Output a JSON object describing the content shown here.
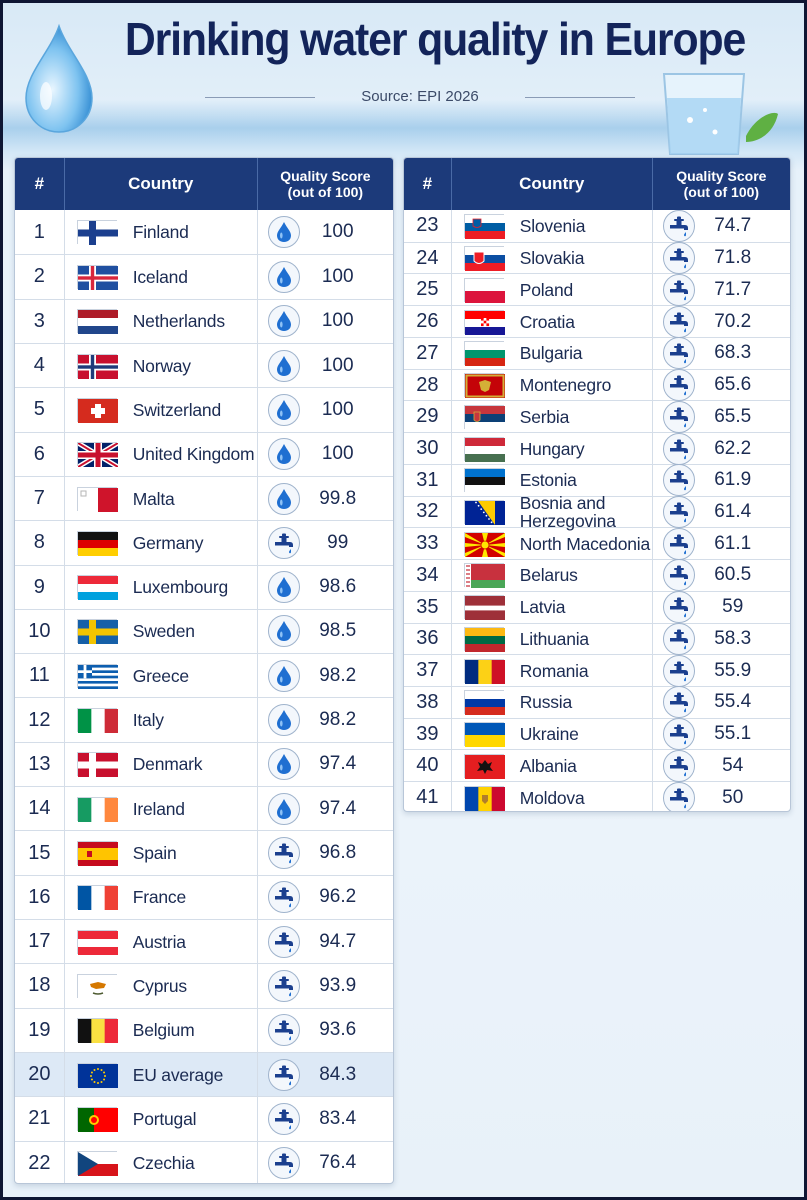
{
  "title": "Drinking water quality in Europe",
  "source": "Source: EPI 2026",
  "columns": {
    "rank": "#",
    "country": "Country",
    "score_line1": "Quality Score",
    "score_line2": "(out of 100)"
  },
  "colors": {
    "header": "#1c3a7a",
    "icon_blue": "#1f6fd1",
    "eu_highlight": "#dde9f6",
    "title": "#13245a"
  },
  "chart_data": {
    "type": "table",
    "title": "Drinking water quality in Europe",
    "columns": [
      "#",
      "Country",
      "Quality Score (out of 100)"
    ],
    "rows": [
      {
        "rank": "1",
        "country": "Finland",
        "flag": "FI",
        "icon": "drop-icon",
        "score": "100"
      },
      {
        "rank": "2",
        "country": "Iceland",
        "flag": "IS",
        "icon": "drop-icon",
        "score": "100"
      },
      {
        "rank": "3",
        "country": "Netherlands",
        "flag": "NL",
        "icon": "drop-icon",
        "score": "100"
      },
      {
        "rank": "4",
        "country": "Norway",
        "flag": "NO",
        "icon": "drop-icon",
        "score": "100"
      },
      {
        "rank": "5",
        "country": "Switzerland",
        "flag": "CH",
        "icon": "drop-icon",
        "score": "100"
      },
      {
        "rank": "6",
        "country": "United Kingdom",
        "flag": "GB",
        "icon": "drop-icon",
        "score": "100"
      },
      {
        "rank": "7",
        "country": "Malta",
        "flag": "MT",
        "icon": "drop-icon",
        "score": "99.8"
      },
      {
        "rank": "8",
        "country": "Germany",
        "flag": "DE",
        "icon": "tap-icon",
        "score": "99"
      },
      {
        "rank": "9",
        "country": "Luxembourg",
        "flag": "LU",
        "icon": "drop-icon",
        "score": "98.6"
      },
      {
        "rank": "10",
        "country": "Sweden",
        "flag": "SE",
        "icon": "drop-icon",
        "score": "98.5"
      },
      {
        "rank": "11",
        "country": "Greece",
        "flag": "GR",
        "icon": "drop-icon",
        "score": "98.2"
      },
      {
        "rank": "12",
        "country": "Italy",
        "flag": "IT",
        "icon": "drop-icon",
        "score": "98.2"
      },
      {
        "rank": "13",
        "country": "Denmark",
        "flag": "DK",
        "icon": "drop-icon",
        "score": "97.4"
      },
      {
        "rank": "14",
        "country": "Ireland",
        "flag": "IE",
        "icon": "drop-icon",
        "score": "97.4"
      },
      {
        "rank": "15",
        "country": "Spain",
        "flag": "ES",
        "icon": "tap-icon",
        "score": "96.8"
      },
      {
        "rank": "16",
        "country": "France",
        "flag": "FR",
        "icon": "tap-icon",
        "score": "96.2"
      },
      {
        "rank": "17",
        "country": "Austria",
        "flag": "AT",
        "icon": "tap-icon",
        "score": "94.7"
      },
      {
        "rank": "18",
        "country": "Cyprus",
        "flag": "CY",
        "icon": "tap-icon",
        "score": "93.9"
      },
      {
        "rank": "19",
        "country": "Belgium",
        "flag": "BE",
        "icon": "tap-icon",
        "score": "93.6"
      },
      {
        "rank": "20",
        "country": "EU average",
        "flag": "EU",
        "icon": "tap-icon",
        "score": "84.3",
        "highlight": true
      },
      {
        "rank": "21",
        "country": "Portugal",
        "flag": "PT",
        "icon": "tap-icon",
        "score": "83.4"
      },
      {
        "rank": "22",
        "country": "Czechia",
        "flag": "CZ",
        "icon": "tap-icon",
        "score": "76.4"
      },
      {
        "rank": "23",
        "country": "Slovenia",
        "flag": "SI",
        "icon": "tap-icon",
        "score": "74.7"
      },
      {
        "rank": "24",
        "country": "Slovakia",
        "flag": "SK",
        "icon": "tap-icon",
        "score": "71.8"
      },
      {
        "rank": "25",
        "country": "Poland",
        "flag": "PL",
        "icon": "tap-icon",
        "score": "71.7"
      },
      {
        "rank": "26",
        "country": "Croatia",
        "flag": "HR",
        "icon": "tap-icon",
        "score": "70.2"
      },
      {
        "rank": "27",
        "country": "Bulgaria",
        "flag": "BG",
        "icon": "tap-icon",
        "score": "68.3"
      },
      {
        "rank": "28",
        "country": "Montenegro",
        "flag": "ME",
        "icon": "tap-icon",
        "score": "65.6"
      },
      {
        "rank": "29",
        "country": "Serbia",
        "flag": "RS",
        "icon": "tap-icon",
        "score": "65.5"
      },
      {
        "rank": "30",
        "country": "Hungary",
        "flag": "HU",
        "icon": "tap-icon",
        "score": "62.2"
      },
      {
        "rank": "31",
        "country": "Estonia",
        "flag": "EE",
        "icon": "tap-icon",
        "score": "61.9"
      },
      {
        "rank": "32",
        "country": "Bosnia and Herzegovina",
        "flag": "BA",
        "icon": "tap-icon",
        "score": "61.4"
      },
      {
        "rank": "33",
        "country": "North Macedonia",
        "flag": "MK",
        "icon": "tap-icon",
        "score": "61.1"
      },
      {
        "rank": "34",
        "country": "Belarus",
        "flag": "BY",
        "icon": "tap-icon",
        "score": "60.5"
      },
      {
        "rank": "35",
        "country": "Latvia",
        "flag": "LV",
        "icon": "tap-icon",
        "score": "59"
      },
      {
        "rank": "36",
        "country": "Lithuania",
        "flag": "LT",
        "icon": "tap-icon",
        "score": "58.3"
      },
      {
        "rank": "37",
        "country": "Romania",
        "flag": "RO",
        "icon": "tap-icon",
        "score": "55.9"
      },
      {
        "rank": "38",
        "country": "Russia",
        "flag": "RU",
        "icon": "tap-icon",
        "score": "55.4"
      },
      {
        "rank": "39",
        "country": "Ukraine",
        "flag": "UA",
        "icon": "tap-icon",
        "score": "55.1"
      },
      {
        "rank": "40",
        "country": "Albania",
        "flag": "AL",
        "icon": "tap-icon",
        "score": "54"
      },
      {
        "rank": "41",
        "country": "Moldova",
        "flag": "MD",
        "icon": "tap-icon",
        "score": "50"
      }
    ]
  }
}
